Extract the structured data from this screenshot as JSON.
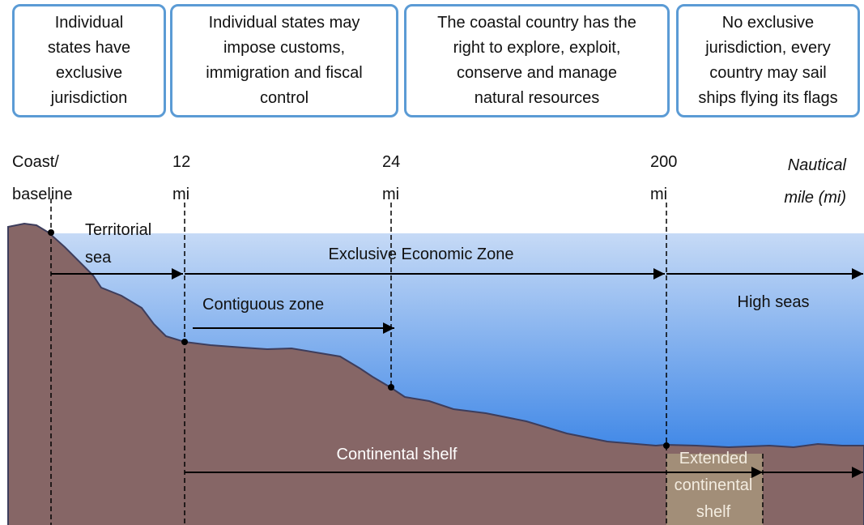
{
  "boxes": [
    {
      "lines": [
        "Individual",
        "states have",
        "exclusive",
        "jurisdiction"
      ]
    },
    {
      "lines": [
        "Individual states may",
        "impose customs,",
        "immigration and fiscal",
        "control"
      ]
    },
    {
      "lines": [
        "The coastal country has the",
        "right to explore, exploit,",
        "conserve and manage",
        "natural resources"
      ]
    },
    {
      "lines": [
        "No exclusive",
        "jurisdiction, every",
        "country may sail",
        "ships flying its flags"
      ]
    }
  ],
  "markers": [
    {
      "lines": [
        "Coast/",
        "baseline"
      ]
    },
    {
      "lines": [
        "12",
        "mi"
      ]
    },
    {
      "lines": [
        "24",
        "mi"
      ]
    },
    {
      "lines": [
        "200",
        "mi"
      ]
    }
  ],
  "unit": {
    "lines": [
      "Nautical",
      "mile (mi)"
    ]
  },
  "zones": {
    "territorial": {
      "lines": [
        "Territorial",
        "sea"
      ]
    },
    "eez": "Exclusive Economic Zone",
    "contiguous": "Contiguous zone",
    "high_seas": "High seas",
    "shelf": "Continental shelf",
    "extended": {
      "lines": [
        "Extended",
        "continental",
        "shelf"
      ]
    }
  }
}
